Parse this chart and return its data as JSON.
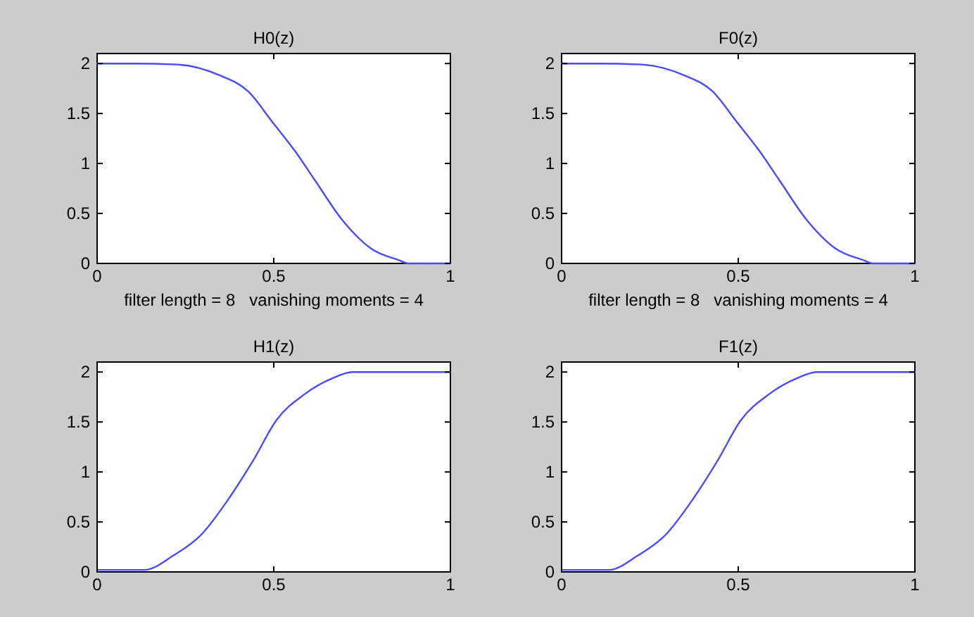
{
  "chart_data": [
    {
      "type": "line",
      "title": "H0(z)",
      "xlabel": "filter length = 8   vanishing moments = 4",
      "x": [
        0,
        0.1,
        0.227,
        0.348,
        0.428,
        0.495,
        0.561,
        0.615,
        0.695,
        0.775,
        0.856,
        0.88,
        1
      ],
      "series": [
        {
          "color": "#4a4aff",
          "values": [
            2,
            2,
            1.99,
            1.88,
            1.72,
            1.42,
            1.12,
            0.84,
            0.43,
            0.15,
            0.03,
            0,
            0
          ]
        }
      ],
      "xlim": [
        0,
        1
      ],
      "ylim": [
        0,
        2.1
      ],
      "xticks": [
        0,
        0.5,
        1
      ],
      "yticks": [
        0,
        0.5,
        1,
        1.5,
        2
      ]
    },
    {
      "type": "line",
      "title": "F0(z)",
      "xlabel": "filter length = 8   vanishing moments = 4",
      "x": [
        0,
        0.1,
        0.227,
        0.348,
        0.428,
        0.495,
        0.561,
        0.615,
        0.695,
        0.775,
        0.856,
        0.88,
        1
      ],
      "series": [
        {
          "color": "#4a4aff",
          "values": [
            2,
            2,
            1.99,
            1.88,
            1.72,
            1.42,
            1.12,
            0.84,
            0.43,
            0.15,
            0.03,
            0,
            0
          ]
        }
      ],
      "xlim": [
        0,
        1
      ],
      "ylim": [
        0,
        2.1
      ],
      "xticks": [
        0,
        0.5,
        1
      ],
      "yticks": [
        0,
        0.5,
        1,
        1.5,
        2
      ]
    },
    {
      "type": "line",
      "title": "H1(z)",
      "x": [
        0,
        0.134,
        0.214,
        0.294,
        0.374,
        0.441,
        0.508,
        0.588,
        0.668,
        0.722,
        0.85,
        1
      ],
      "series": [
        {
          "color": "#4a4aff",
          "values": [
            0.02,
            0.02,
            0.16,
            0.37,
            0.74,
            1.11,
            1.52,
            1.78,
            1.94,
            2,
            2,
            2
          ]
        }
      ],
      "xlim": [
        0,
        1
      ],
      "ylim": [
        0,
        2.1
      ],
      "xticks": [
        0,
        0.5,
        1
      ],
      "yticks": [
        0,
        0.5,
        1,
        1.5,
        2
      ]
    },
    {
      "type": "line",
      "title": "F1(z)",
      "x": [
        0,
        0.134,
        0.214,
        0.294,
        0.374,
        0.441,
        0.508,
        0.588,
        0.668,
        0.722,
        0.85,
        1
      ],
      "series": [
        {
          "color": "#4a4aff",
          "values": [
            0.02,
            0.02,
            0.16,
            0.37,
            0.74,
            1.11,
            1.52,
            1.78,
            1.94,
            2,
            2,
            2
          ]
        }
      ],
      "xlim": [
        0,
        1
      ],
      "ylim": [
        0,
        2.1
      ],
      "xticks": [
        0,
        0.5,
        1
      ],
      "yticks": [
        0,
        0.5,
        1,
        1.5,
        2
      ]
    }
  ]
}
